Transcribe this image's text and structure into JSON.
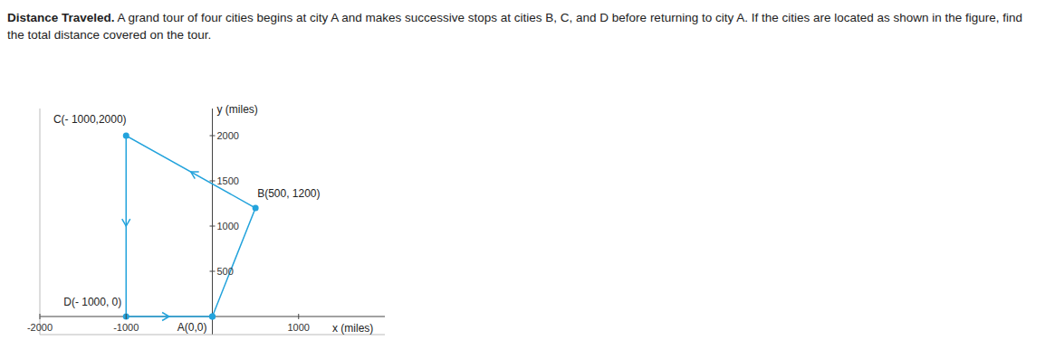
{
  "problem": {
    "heading": "Distance Traveled.",
    "text": "A grand tour of four cities begins at city A and makes successive stops at cities B, C, and D before returning to city A. If the cities are located as shown in the figure, find the total distance covered on the tour."
  },
  "chart_data": {
    "type": "line",
    "x": [
      0,
      500,
      -1000,
      -1000,
      0
    ],
    "values": [
      0,
      1200,
      2000,
      0,
      0
    ],
    "point_labels": [
      "A(0,0)",
      "B(500, 1200)",
      "C(- 1000,2000)",
      "D(- 1000, 0)",
      null
    ],
    "color": "#23a3dc",
    "marker": "circle",
    "xlabel": "x (miles)",
    "ylabel": "y (miles)",
    "xlim": [
      -2000,
      2000
    ],
    "ylim": [
      -200,
      2300
    ],
    "xticks": [
      -2000,
      -1000,
      1000
    ],
    "yticks": [
      500,
      1000,
      1500,
      2000
    ]
  }
}
